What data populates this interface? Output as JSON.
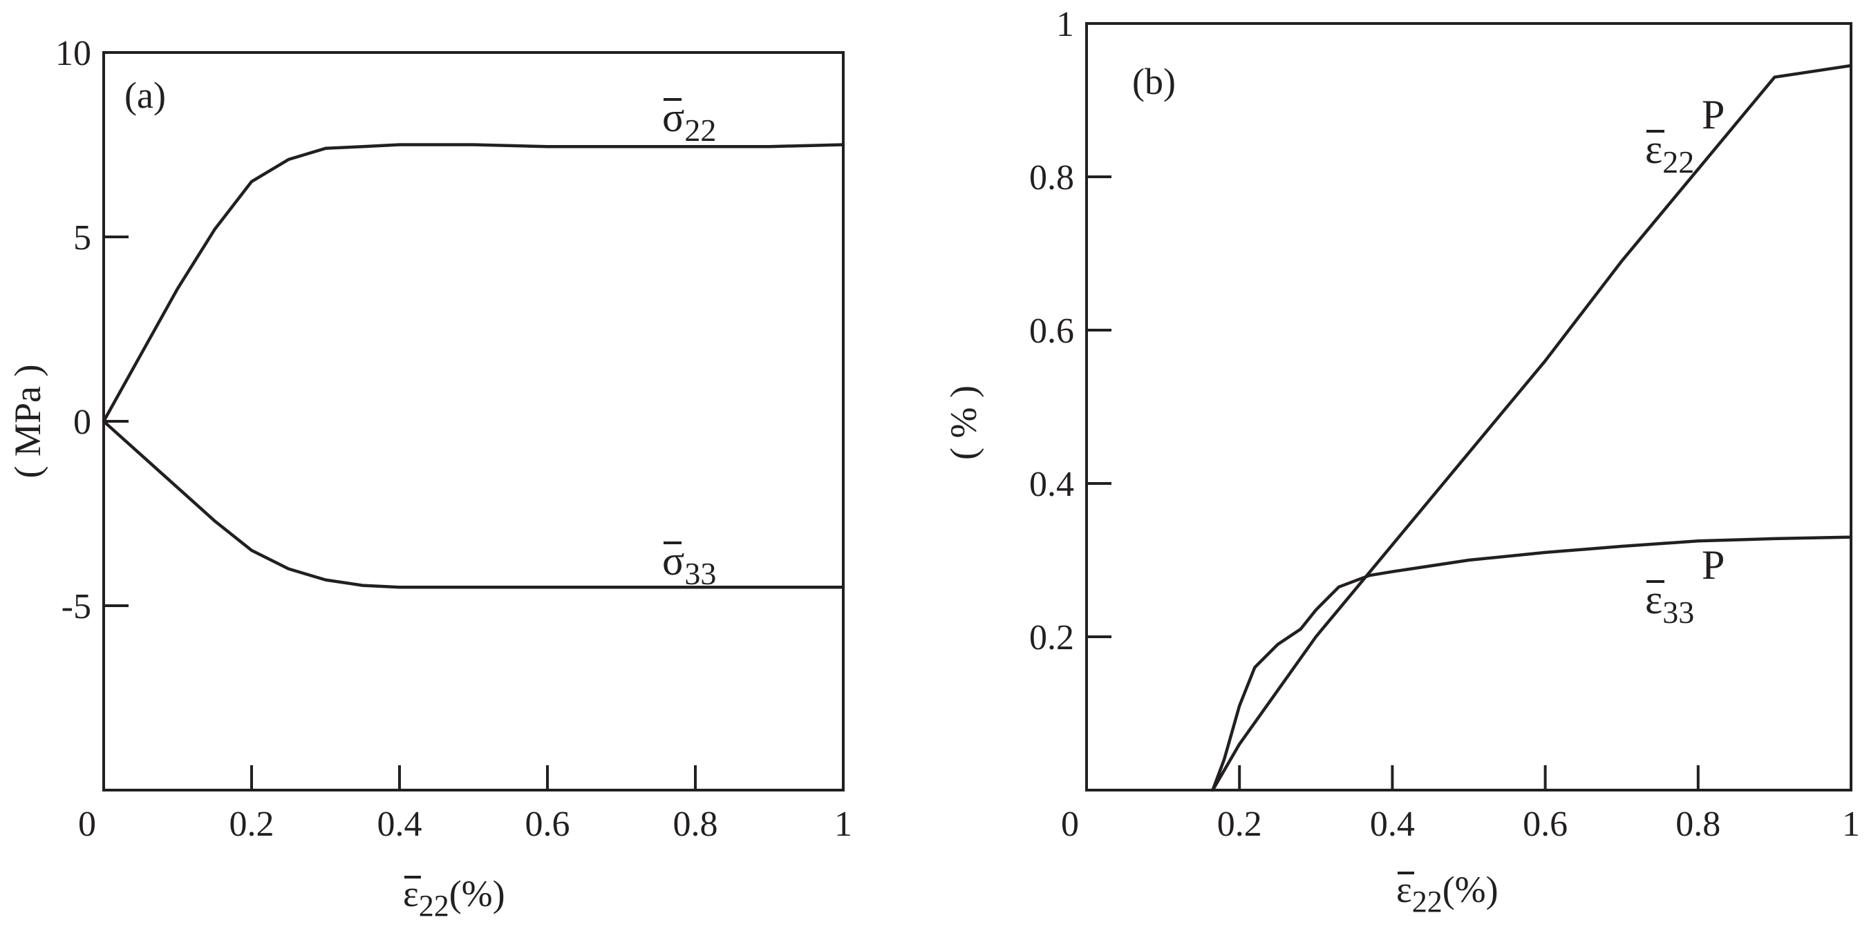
{
  "chart_data": [
    {
      "type": "line",
      "panel_label": "(a)",
      "xlabel": {
        "base": "ε",
        "sub": "22",
        "tail": "(%)"
      },
      "ylabel": "( MPa )",
      "xlim": [
        0,
        1
      ],
      "ylim": [
        -10,
        10
      ],
      "x_ticks": [
        0,
        0.2,
        0.4,
        0.6,
        0.8,
        1
      ],
      "x_tick_labels": [
        "0",
        "0.2",
        "0.4",
        "0.6",
        "0.8",
        "1"
      ],
      "y_ticks": [
        10,
        5,
        0,
        -5
      ],
      "y_tick_labels": [
        "10",
        "5",
        "0",
        "-5"
      ],
      "series": [
        {
          "label": {
            "base": "σ",
            "sub": "22",
            "sup": ""
          },
          "x": [
            0,
            0.05,
            0.1,
            0.15,
            0.2,
            0.25,
            0.3,
            0.35,
            0.4,
            0.5,
            0.6,
            0.7,
            0.8,
            0.9,
            1.0
          ],
          "y": [
            0,
            1.8,
            3.6,
            5.2,
            6.5,
            7.1,
            7.4,
            7.45,
            7.5,
            7.5,
            7.45,
            7.45,
            7.45,
            7.45,
            7.5
          ]
        },
        {
          "label": {
            "base": "σ",
            "sub": "33",
            "sup": ""
          },
          "x": [
            0,
            0.05,
            0.1,
            0.15,
            0.2,
            0.25,
            0.3,
            0.35,
            0.4,
            0.5,
            0.6,
            0.7,
            0.8,
            0.9,
            1.0
          ],
          "y": [
            0,
            -0.9,
            -1.8,
            -2.7,
            -3.5,
            -4.0,
            -4.3,
            -4.45,
            -4.5,
            -4.5,
            -4.5,
            -4.5,
            -4.5,
            -4.5,
            -4.5
          ]
        }
      ]
    },
    {
      "type": "line",
      "panel_label": "(b)",
      "xlabel": {
        "base": "ε",
        "sub": "22",
        "tail": "(%)"
      },
      "ylabel": "( % )",
      "xlim": [
        0,
        1
      ],
      "ylim": [
        0,
        1
      ],
      "x_ticks": [
        0,
        0.2,
        0.4,
        0.6,
        0.8,
        1
      ],
      "x_tick_labels": [
        "0",
        "0.2",
        "0.4",
        "0.6",
        "0.8",
        "1"
      ],
      "y_ticks": [
        1,
        0.8,
        0.6,
        0.4,
        0.2
      ],
      "y_tick_labels": [
        "1",
        "0.8",
        "0.6",
        "0.4",
        "0.2"
      ],
      "series": [
        {
          "label": {
            "base": "ε",
            "sub": "22",
            "sup": "P"
          },
          "x": [
            0.165,
            0.2,
            0.25,
            0.3,
            0.35,
            0.4,
            0.5,
            0.6,
            0.7,
            0.8,
            0.9,
            1.0
          ],
          "y": [
            0,
            0.06,
            0.13,
            0.2,
            0.26,
            0.32,
            0.44,
            0.56,
            0.69,
            0.81,
            0.93,
            0.945
          ]
        },
        {
          "label": {
            "base": "ε",
            "sub": "33",
            "sup": "P"
          },
          "x": [
            0.165,
            0.18,
            0.2,
            0.22,
            0.25,
            0.28,
            0.3,
            0.33,
            0.37,
            0.4,
            0.5,
            0.6,
            0.7,
            0.8,
            0.9,
            1.0
          ],
          "y": [
            0,
            0.04,
            0.11,
            0.16,
            0.19,
            0.21,
            0.235,
            0.265,
            0.28,
            0.285,
            0.3,
            0.31,
            0.318,
            0.325,
            0.328,
            0.33
          ]
        }
      ]
    }
  ]
}
